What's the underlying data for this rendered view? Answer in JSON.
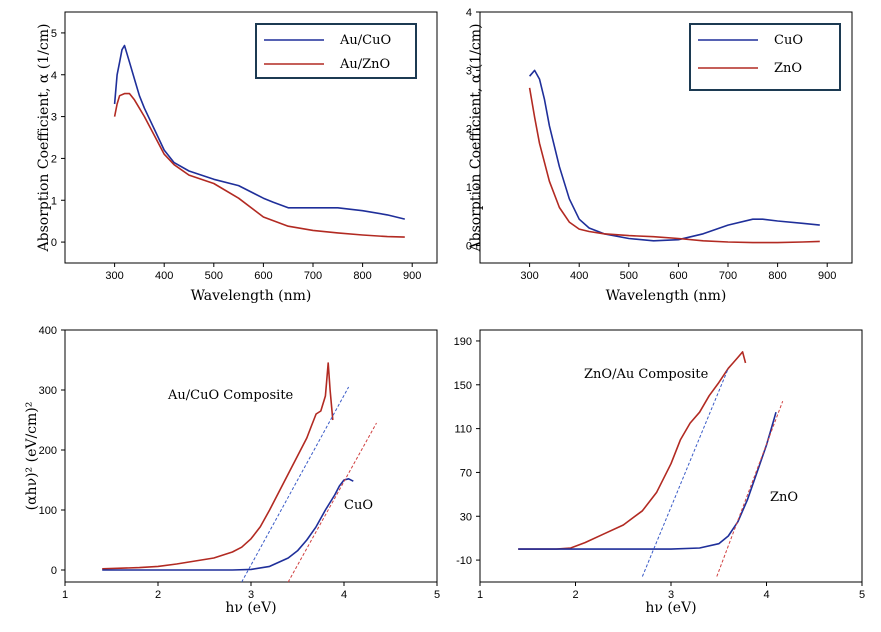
{
  "chart_data": [
    {
      "type": "line",
      "xlabel": "Wavelength (nm)",
      "ylabel": "Absorption Coefficient, α  (1/cm)",
      "xlim": [
        200,
        950
      ],
      "ylim": [
        -0.5,
        5.5
      ],
      "xticks": [
        300,
        400,
        500,
        600,
        700,
        800,
        900
      ],
      "yticks": [
        0,
        1,
        2,
        3,
        4,
        5
      ],
      "legend_position": "top-right",
      "series": [
        {
          "name": "Au/CuO",
          "color": "#1f2f9a",
          "x": [
            300,
            305,
            310,
            315,
            320,
            325,
            330,
            340,
            350,
            360,
            380,
            400,
            420,
            450,
            500,
            550,
            600,
            620,
            650,
            700,
            750,
            800,
            850,
            885
          ],
          "y": [
            3.3,
            4.0,
            4.3,
            4.6,
            4.7,
            4.5,
            4.3,
            3.9,
            3.5,
            3.2,
            2.7,
            2.2,
            1.9,
            1.7,
            1.5,
            1.35,
            1.05,
            0.95,
            0.82,
            0.82,
            0.82,
            0.75,
            0.65,
            0.55
          ]
        },
        {
          "name": "Au/ZnO",
          "color": "#b22a22",
          "x": [
            300,
            305,
            310,
            320,
            330,
            340,
            350,
            360,
            380,
            400,
            420,
            450,
            500,
            550,
            600,
            650,
            700,
            750,
            800,
            850,
            885
          ],
          "y": [
            3.0,
            3.3,
            3.5,
            3.55,
            3.55,
            3.4,
            3.2,
            3.0,
            2.55,
            2.1,
            1.85,
            1.6,
            1.4,
            1.05,
            0.6,
            0.38,
            0.28,
            0.22,
            0.17,
            0.13,
            0.12
          ]
        }
      ]
    },
    {
      "type": "line",
      "xlabel": "Wavelength (nm)",
      "ylabel": "Absorption Coefficient, α  (1/cm)",
      "xlim": [
        200,
        950
      ],
      "ylim": [
        -0.3,
        4
      ],
      "xticks": [
        300,
        400,
        500,
        600,
        700,
        800,
        900
      ],
      "yticks": [
        0,
        1,
        2,
        3,
        4
      ],
      "legend_position": "top-right",
      "series": [
        {
          "name": "CuO",
          "color": "#1f2f9a",
          "x": [
            300,
            310,
            320,
            330,
            340,
            360,
            380,
            400,
            420,
            450,
            500,
            550,
            600,
            650,
            700,
            750,
            770,
            800,
            850,
            885
          ],
          "y": [
            2.9,
            3.0,
            2.85,
            2.5,
            2.05,
            1.35,
            0.8,
            0.45,
            0.3,
            0.2,
            0.12,
            0.08,
            0.1,
            0.2,
            0.35,
            0.45,
            0.45,
            0.42,
            0.38,
            0.35
          ]
        },
        {
          "name": "ZnO",
          "color": "#b22a22",
          "x": [
            300,
            310,
            320,
            340,
            360,
            380,
            400,
            420,
            450,
            500,
            550,
            600,
            650,
            700,
            750,
            800,
            850,
            885
          ],
          "y": [
            2.7,
            2.2,
            1.75,
            1.1,
            0.65,
            0.4,
            0.28,
            0.24,
            0.2,
            0.17,
            0.15,
            0.12,
            0.08,
            0.06,
            0.05,
            0.05,
            0.06,
            0.07
          ]
        }
      ]
    },
    {
      "type": "line",
      "xlabel": "hν (eV)",
      "ylabel": "(αhν)² (eV/cm)²",
      "xlim": [
        1,
        5
      ],
      "ylim": [
        -20,
        400
      ],
      "xticks": [
        1,
        2,
        3,
        4,
        5
      ],
      "yticks": [
        0,
        100,
        200,
        300,
        400
      ],
      "annotations": [
        "Au/CuO Composite",
        "CuO"
      ],
      "series": [
        {
          "name": "Au/CuO Composite",
          "color": "#b22a22",
          "x": [
            1.4,
            1.6,
            1.8,
            2.0,
            2.2,
            2.4,
            2.6,
            2.8,
            2.9,
            3.0,
            3.1,
            3.2,
            3.3,
            3.4,
            3.5,
            3.6,
            3.65,
            3.7,
            3.75,
            3.8,
            3.83,
            3.85,
            3.88
          ],
          "y": [
            2,
            3,
            4,
            6,
            10,
            15,
            20,
            30,
            38,
            52,
            72,
            100,
            130,
            160,
            190,
            220,
            240,
            260,
            265,
            290,
            345,
            300,
            250
          ]
        },
        {
          "name": "CuO",
          "color": "#1f2f9a",
          "x": [
            1.4,
            2.0,
            2.5,
            2.8,
            3.0,
            3.2,
            3.4,
            3.5,
            3.6,
            3.7,
            3.8,
            3.9,
            3.95,
            4.0,
            4.05,
            4.1
          ],
          "y": [
            0,
            0,
            0,
            0,
            1,
            6,
            20,
            32,
            50,
            72,
            100,
            125,
            140,
            150,
            152,
            148
          ]
        },
        {
          "name": "fit1",
          "color": "#3a5bc7",
          "dashed": true,
          "x": [
            2.9,
            4.05
          ],
          "y": [
            -20,
            305
          ]
        },
        {
          "name": "fit2",
          "color": "#d04040",
          "dashed": true,
          "x": [
            3.4,
            4.35
          ],
          "y": [
            -20,
            245
          ]
        }
      ]
    },
    {
      "type": "line",
      "xlabel": "hν (eV)",
      "ylabel": "",
      "xlim": [
        1,
        5
      ],
      "ylim": [
        -30,
        200
      ],
      "xticks": [
        1,
        2,
        3,
        4,
        5
      ],
      "yticks": [
        -10,
        30,
        70,
        110,
        150,
        190
      ],
      "annotations": [
        "ZnO/Au Composite",
        "ZnO"
      ],
      "series": [
        {
          "name": "ZnO/Au Composite",
          "color": "#b22a22",
          "x": [
            1.4,
            1.8,
            1.95,
            2.1,
            2.3,
            2.5,
            2.7,
            2.85,
            3.0,
            3.1,
            3.2,
            3.3,
            3.4,
            3.5,
            3.6,
            3.65,
            3.7,
            3.75,
            3.78
          ],
          "y": [
            0,
            0,
            1,
            6,
            14,
            22,
            35,
            52,
            78,
            100,
            115,
            125,
            140,
            152,
            165,
            170,
            175,
            180,
            170
          ]
        },
        {
          "name": "ZnO",
          "color": "#1f2f9a",
          "x": [
            1.4,
            2.5,
            3.0,
            3.3,
            3.5,
            3.6,
            3.7,
            3.8,
            3.9,
            4.0,
            4.05,
            4.1
          ],
          "y": [
            0,
            0,
            0,
            1,
            5,
            12,
            25,
            45,
            70,
            95,
            110,
            125
          ]
        },
        {
          "name": "fit1",
          "color": "#3a5bc7",
          "dashed": true,
          "x": [
            2.7,
            3.6
          ],
          "y": [
            -25,
            165
          ]
        },
        {
          "name": "fit2",
          "color": "#d04040",
          "dashed": true,
          "x": [
            3.48,
            4.17
          ],
          "y": [
            -25,
            135
          ]
        }
      ]
    }
  ]
}
